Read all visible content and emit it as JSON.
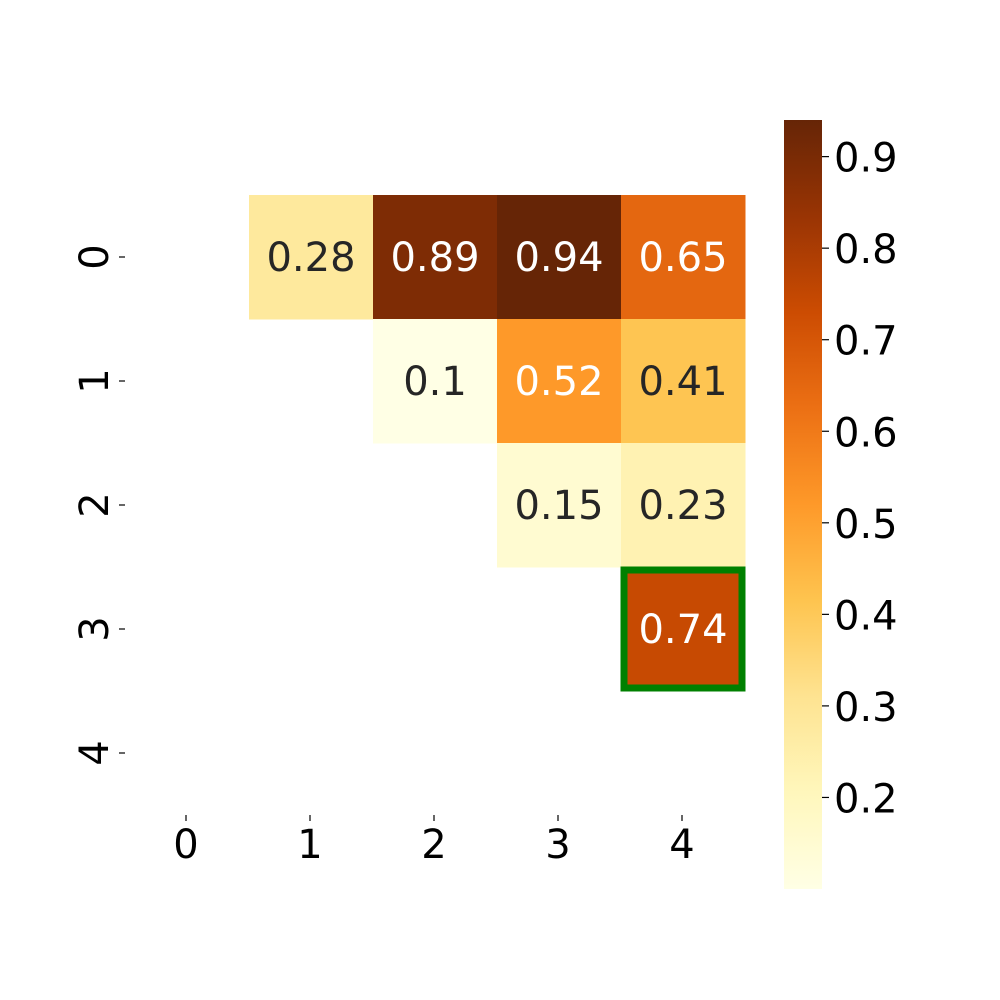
{
  "chart_data": {
    "type": "heatmap",
    "title": "",
    "xlabel": "",
    "ylabel": "",
    "x_categories": [
      "0",
      "1",
      "2",
      "3",
      "4"
    ],
    "y_categories": [
      "0",
      "1",
      "2",
      "3",
      "4"
    ],
    "cells": [
      {
        "row": 0,
        "col": 1,
        "value": 0.28,
        "label": "0.28"
      },
      {
        "row": 0,
        "col": 2,
        "value": 0.89,
        "label": "0.89"
      },
      {
        "row": 0,
        "col": 3,
        "value": 0.94,
        "label": "0.94"
      },
      {
        "row": 0,
        "col": 4,
        "value": 0.65,
        "label": "0.65"
      },
      {
        "row": 1,
        "col": 2,
        "value": 0.1,
        "label": "0.1"
      },
      {
        "row": 1,
        "col": 3,
        "value": 0.52,
        "label": "0.52"
      },
      {
        "row": 1,
        "col": 4,
        "value": 0.41,
        "label": "0.41"
      },
      {
        "row": 2,
        "col": 3,
        "value": 0.15,
        "label": "0.15"
      },
      {
        "row": 2,
        "col": 4,
        "value": 0.23,
        "label": "0.23"
      },
      {
        "row": 3,
        "col": 4,
        "value": 0.74,
        "label": "0.74"
      }
    ],
    "highlight": {
      "row": 3,
      "col": 4,
      "color": "#008000"
    },
    "colorbar": {
      "colormap": "YlOrBr",
      "min": 0.1,
      "max": 0.94,
      "ticks": [
        "0.2",
        "0.3",
        "0.4",
        "0.5",
        "0.6",
        "0.7",
        "0.8",
        "0.9"
      ]
    },
    "colors": {
      "light_text": "#ffffff",
      "dark_text": "#262626"
    }
  }
}
